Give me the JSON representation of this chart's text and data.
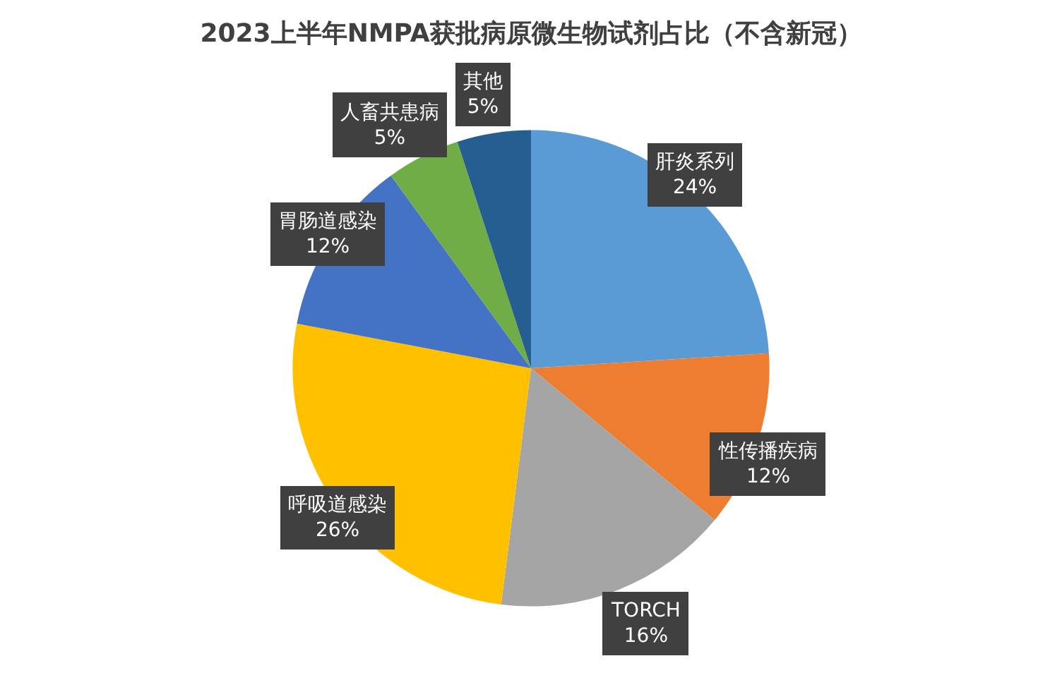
{
  "chart_data": {
    "type": "pie",
    "title": "2023上半年NMPA获批病原微生物试剂占比（不含新冠）",
    "categories": [
      "肝炎系列",
      "性传播疾病",
      "TORCH",
      "呼吸道感染",
      "胃肠道感染",
      "人畜共患病",
      "其他"
    ],
    "values": [
      24,
      12,
      16,
      26,
      12,
      5,
      5
    ],
    "value_labels": [
      "24%",
      "12%",
      "16%",
      "26%",
      "12%",
      "5%",
      "5%"
    ],
    "colors": [
      "#5b9bd5",
      "#ed7d31",
      "#a5a5a5",
      "#ffc000",
      "#4472c4",
      "#70ad47",
      "#255e91"
    ],
    "legend": false
  }
}
